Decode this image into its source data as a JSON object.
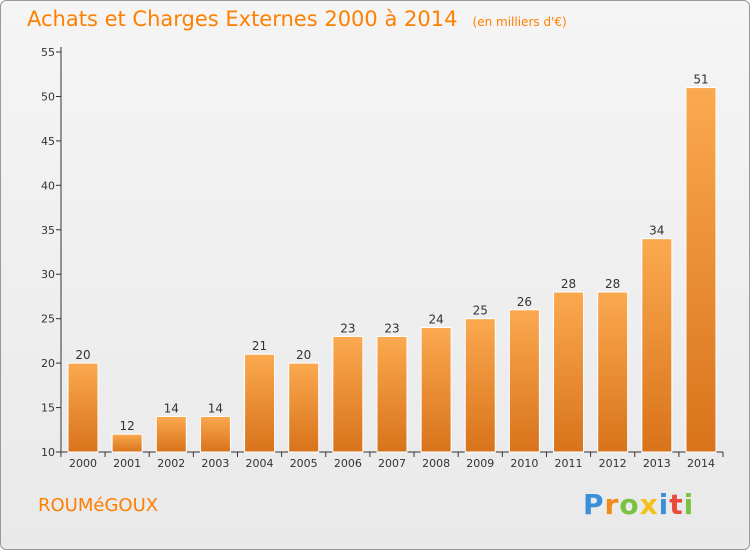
{
  "chart_data": {
    "type": "bar",
    "title": "Achats et Charges Externes 2000 à 2014",
    "subtitle": "(en milliers d'€)",
    "categories": [
      "2000",
      "2001",
      "2002",
      "2003",
      "2004",
      "2005",
      "2006",
      "2007",
      "2008",
      "2009",
      "2010",
      "2011",
      "2012",
      "2013",
      "2014"
    ],
    "values": [
      20,
      12,
      14,
      14,
      21,
      20,
      23,
      23,
      24,
      25,
      26,
      28,
      28,
      34,
      51
    ],
    "xlabel": "",
    "ylabel": "",
    "ylim": [
      10,
      55
    ],
    "yticks": [
      10,
      15,
      20,
      25,
      30,
      35,
      40,
      45,
      50,
      55
    ],
    "grid": false,
    "legend": "none",
    "bar_color_light": "#fba94f",
    "bar_color_dark": "#d8731b",
    "axis_color": "#333333"
  },
  "commune": "ROUMéGOUX",
  "brand": {
    "letters": [
      "P",
      "r",
      "o",
      "x",
      "i",
      "t",
      "i"
    ],
    "colors": [
      "#3a8fd9",
      "#f28a1a",
      "#7cc242",
      "#f2c21a",
      "#3a8fd9",
      "#e84a3c",
      "#7cc242"
    ]
  }
}
